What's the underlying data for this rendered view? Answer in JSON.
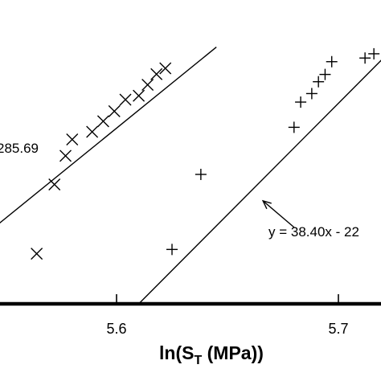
{
  "chart_data": {
    "type": "scatter",
    "title": "",
    "xlabel": {
      "prefix": "ln(S",
      "subscript": "T",
      "suffix": " (MPa))"
    },
    "ylabel": "",
    "x_ticks": [
      5.6,
      5.7
    ],
    "x_tick_labels": [
      "5.6",
      "5.7"
    ],
    "grid": false,
    "series": [
      {
        "marker": "x",
        "points": [
          [
            5.564,
            0.165
          ],
          [
            5.572,
            0.393
          ],
          [
            5.577,
            0.487
          ],
          [
            5.58,
            0.541
          ],
          [
            5.589,
            0.566
          ],
          [
            5.594,
            0.601
          ],
          [
            5.599,
            0.634
          ],
          [
            5.604,
            0.672
          ],
          [
            5.61,
            0.685
          ],
          [
            5.614,
            0.721
          ],
          [
            5.618,
            0.756
          ],
          [
            5.622,
            0.775
          ]
        ],
        "fit_line": {
          "x": [
            5.534,
            5.645
          ],
          "y": [
            0.187,
            0.845
          ]
        }
      },
      {
        "marker": "+",
        "points": [
          [
            5.625,
            0.179
          ],
          [
            5.638,
            0.426
          ],
          [
            5.68,
            0.581
          ],
          [
            5.683,
            0.664
          ],
          [
            5.688,
            0.692
          ],
          [
            5.691,
            0.731
          ],
          [
            5.694,
            0.755
          ],
          [
            5.697,
            0.797
          ],
          [
            5.712,
            0.809
          ],
          [
            5.716,
            0.823
          ]
        ],
        "fit_line": {
          "x": [
            5.61,
            5.724
          ],
          "y": [
            0.0,
            0.836
          ]
        }
      }
    ],
    "annotations": [
      {
        "text": "285.69",
        "arrow_from": [
          5.535,
          0.434
        ],
        "arrow_to": [
          5.545,
          0.4
        ]
      },
      {
        "text": "y = 38.40x - 22",
        "arrow_from": [
          5.68,
          0.252
        ],
        "arrow_to": [
          5.666,
          0.339
        ]
      }
    ]
  }
}
